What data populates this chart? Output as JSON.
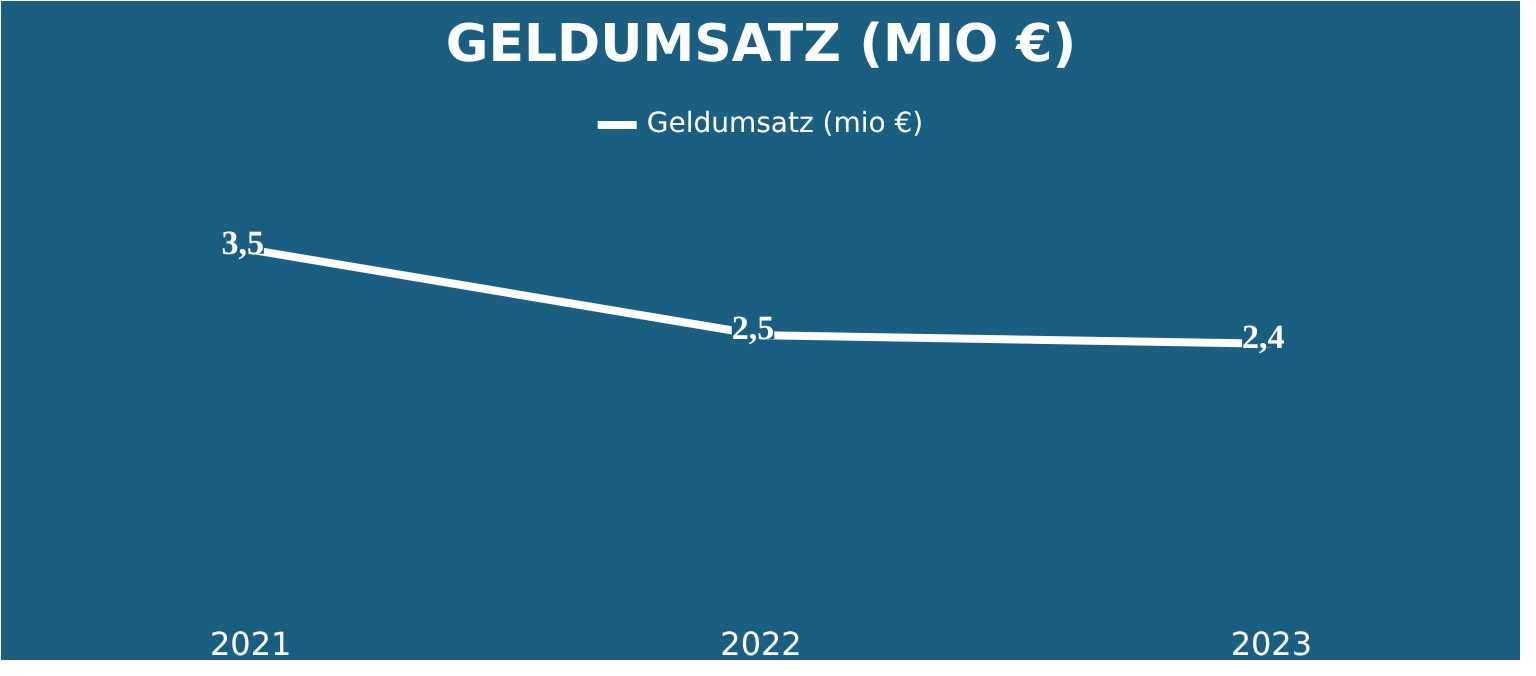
{
  "chart_data": {
    "type": "line",
    "title": "GELDUMSATZ (MIO €)",
    "categories": [
      "2021",
      "2022",
      "2023"
    ],
    "series": [
      {
        "name": "Geldumsatz (mio €)",
        "color": "#ffffff",
        "values": [
          3.5,
          2.5,
          2.4
        ],
        "value_labels": [
          "3,5",
          "2,5",
          "2,4"
        ]
      }
    ],
    "legend": "top",
    "line_style": "solid"
  }
}
